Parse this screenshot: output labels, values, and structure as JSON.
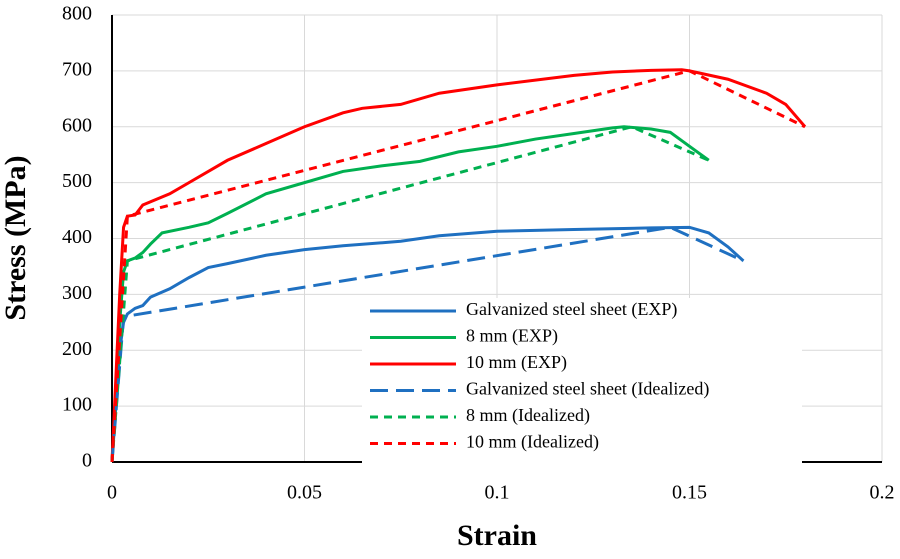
{
  "chart_data": {
    "type": "line",
    "x_label": "Strain",
    "y_label": "Stress (MPa)",
    "xlim": [
      0,
      0.2
    ],
    "xticks": [
      0,
      0.05,
      0.1,
      0.15,
      0.2
    ],
    "ylim": [
      0,
      800
    ],
    "yticks": [
      0,
      100,
      200,
      300,
      400,
      500,
      600,
      700,
      800
    ],
    "grid": true,
    "legend": "lower right",
    "series": [
      {
        "name": "Galvanized steel sheet (EXP)",
        "color": "#1f70c1",
        "line_style": "solid",
        "x": [
          0,
          0.002,
          0.003,
          0.004,
          0.006,
          0.008,
          0.01,
          0.015,
          0.02,
          0.025,
          0.03,
          0.04,
          0.05,
          0.06,
          0.075,
          0.085,
          0.1,
          0.12,
          0.14,
          0.15,
          0.155,
          0.16,
          0.164
        ],
        "values": [
          0,
          200,
          250,
          265,
          275,
          280,
          295,
          310,
          330,
          348,
          355,
          370,
          380,
          387,
          395,
          405,
          413,
          416,
          419,
          420,
          410,
          385,
          360
        ]
      },
      {
        "name": "8 mm (EXP)",
        "color": "#00b050",
        "line_style": "solid",
        "x": [
          0,
          0.002,
          0.003,
          0.004,
          0.006,
          0.008,
          0.01,
          0.013,
          0.02,
          0.025,
          0.03,
          0.04,
          0.05,
          0.06,
          0.07,
          0.08,
          0.09,
          0.1,
          0.11,
          0.12,
          0.13,
          0.133,
          0.14,
          0.145,
          0.15,
          0.155
        ],
        "values": [
          0,
          250,
          340,
          360,
          365,
          375,
          390,
          410,
          420,
          428,
          445,
          480,
          500,
          520,
          530,
          538,
          555,
          565,
          578,
          588,
          598,
          600,
          596,
          590,
          565,
          540
        ]
      },
      {
        "name": "10 mm (EXP)",
        "color": "#ff0000",
        "line_style": "solid",
        "x": [
          0,
          0.002,
          0.003,
          0.004,
          0.006,
          0.008,
          0.015,
          0.02,
          0.03,
          0.04,
          0.05,
          0.06,
          0.065,
          0.075,
          0.085,
          0.1,
          0.12,
          0.13,
          0.14,
          0.148,
          0.15,
          0.16,
          0.17,
          0.175,
          0.18
        ],
        "values": [
          0,
          300,
          420,
          440,
          442,
          460,
          480,
          500,
          540,
          570,
          600,
          625,
          633,
          640,
          660,
          675,
          692,
          698,
          701,
          702,
          700,
          685,
          660,
          640,
          600
        ]
      },
      {
        "name": "Galvanized steel sheet (Idealized)",
        "color": "#1f70c1",
        "line_style": "long-dash",
        "x": [
          0,
          0.003,
          0.145,
          0.164
        ],
        "values": [
          0,
          260,
          420,
          360
        ]
      },
      {
        "name": "8 mm (Idealized)",
        "color": "#00b050",
        "line_style": "dash",
        "x": [
          0,
          0.004,
          0.135,
          0.155
        ],
        "values": [
          0,
          360,
          600,
          540
        ]
      },
      {
        "name": "10 mm (Idealized)",
        "color": "#ff0000",
        "line_style": "dash",
        "x": [
          0,
          0.004,
          0.15,
          0.18
        ],
        "values": [
          0,
          440,
          700,
          600
        ]
      }
    ]
  }
}
